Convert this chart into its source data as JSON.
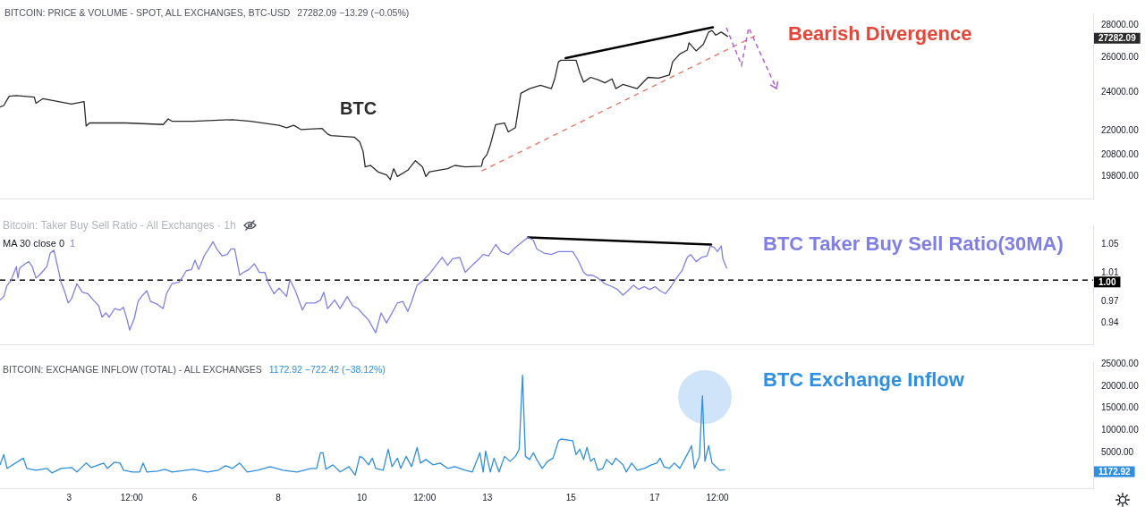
{
  "chart_data": [
    {
      "type": "line",
      "title": "BITCOIN: PRICE & VOLUME - SPOT, ALL EXCHANGES, BTC-USD",
      "subtitle": "27282.09 −13.29 (−0.05%)",
      "annotations": [
        "Bearish Divergence",
        "27282.09"
      ],
      "log": true,
      "xlim": [
        "--03-01T08:24",
        "--03-27T11:31"
      ],
      "ylim": [
        18830,
        28750
      ],
      "yticks": [
        {
          "value": 28000,
          "label": "28000.00"
        },
        {
          "value": 26000,
          "label": "26000.00"
        },
        {
          "value": 24000,
          "label": "24000.00"
        },
        {
          "value": 22000,
          "label": "22000.00"
        },
        {
          "value": 20800,
          "label": "20800.00"
        },
        {
          "value": 19800,
          "label": "19800.00"
        }
      ],
      "tick_labels": "y",
      "series": [
        {
          "name": "BTC",
          "color": "#2b2b2b",
          "x": [
            "--03-01T08:24",
            "--03-01T10:34",
            "--03-01T13:41",
            "--03-01T17:46",
            "--03-02T04:05",
            "--03-02T05:02",
            "--03-02T09:07",
            "--03-03T01:26",
            "--03-03T08:38",
            "--03-03T09:50",
            "--03-03T11:46",
            "--03-04T08:24",
            "--03-05T06:00",
            "--03-05T08:53",
            "--03-05T11:02",
            "--03-05T23:17",
            "--03-06T21:50",
            "--03-07T08:10",
            "--03-08T00:29",
            "--03-08T04:48",
            "--03-08T08:53",
            "--03-08T12:58",
            "--03-09T01:12",
            "--03-09T04:19",
            "--03-09T06:14",
            "--03-09T19:41",
            "--03-09T22:48",
            "--03-10T00:43",
            "--03-10T01:55",
            "--03-10T05:02",
            "--03-10T09:07",
            "--03-10T14:10",
            "--03-10T16:19",
            "--03-10T18:14",
            "--03-10T20:24",
            "--03-11T02:24",
            "--03-11T06:43",
            "--03-11T10:48",
            "--03-11T12:43",
            "--03-11T14:53",
            "--03-12T01:12",
            "--03-12T05:17",
            "--03-12T11:17",
            "--03-12T20:38",
            "--03-12T21:36",
            "--03-12T23:46",
            "--03-13T01:41",
            "--03-13T04:48",
            "--03-13T09:50",
            "--03-13T12:00",
            "--03-13T16:05",
            "--03-13T19:12",
            "--03-14T00:14",
            "--03-14T06:29",
            "--03-14T12:43",
            "--03-14T14:38",
            "--03-14T16:48",
            "--03-14T18:14",
            "--03-15T00:58",
            "--03-15T02:53",
            "--03-15T05:02",
            "--03-15T07:12",
            "--03-15T11:17",
            "--03-15T15:22",
            "--03-15T19:26",
            "--03-15T23:31",
            "--03-16T01:41",
            "--03-16T05:46",
            "--03-16T13:55",
            "--03-16T20:10",
            "--03-17T02:10",
            "--03-17T08:24",
            "--03-17T10:19",
            "--03-17T14:24",
            "--03-17T18:43",
            "--03-17T19:41",
            "--03-17T23:46",
            "--03-18T03:50",
            "--03-18T06:58",
            "--03-18T08:53",
            "--03-18T11:02",
            "--03-18T14:10",
            "--03-18T17:46"
          ],
          "values": [
            23210,
            23290,
            23790,
            23830,
            23740,
            23410,
            23660,
            23370,
            23500,
            22220,
            22380,
            22380,
            22300,
            22590,
            22470,
            22470,
            22550,
            22470,
            22260,
            22140,
            22260,
            22050,
            22100,
            21820,
            21740,
            21670,
            21430,
            20970,
            20240,
            20310,
            20020,
            19870,
            19660,
            20160,
            19800,
            20090,
            20530,
            20240,
            19800,
            20020,
            20160,
            20310,
            20240,
            20270,
            20600,
            20820,
            21280,
            22300,
            22380,
            21930,
            22140,
            23950,
            24210,
            24390,
            24210,
            24750,
            25740,
            25830,
            25830,
            25830,
            25110,
            24570,
            24840,
            24710,
            24530,
            24750,
            24210,
            24440,
            24210,
            24840,
            24800,
            24980,
            25740,
            26200,
            26440,
            26880,
            26390,
            26780,
            27550,
            27650,
            27360,
            27550,
            27282.09
          ]
        },
        {
          "color": "#000000",
          "x": [
            "--03-14T20:53",
            "--03-18T09:22"
          ],
          "values": [
            25960,
            27850
          ]
        },
        {
          "color": "#ee6e5e",
          "line_style": "dashed",
          "x": [
            "--03-12T20:38",
            "--03-19T09:36"
          ],
          "values": [
            20050,
            27310
          ]
        }
      ]
    },
    {
      "type": "line",
      "title": "Bitcoin: Taker Buy Sell Ratio - All Exchanges · 1h",
      "subtitle": "MA 30 close 0",
      "annotations": [
        "1"
      ],
      "xlim": [
        "--03-01T08:24",
        "--03-27T11:31"
      ],
      "ylim": [
        0.91,
        1.077
      ],
      "yticks": [
        1.05,
        1.01,
        0.97,
        0.94
      ],
      "tick_labels": "y",
      "ref_lines": [
        {
          "axis": "y",
          "value": 1,
          "label": "1.00",
          "color": "#000000",
          "line_style": "dashed"
        }
      ],
      "series": [
        {
          "name": "BTC Taker Buy Sell Ratio(30MA)",
          "color": "#8080e4",
          "x": [
            "--03-01T08:24",
            "--03-01T10:34",
            "--03-01T12:29",
            "--03-01T14:38",
            "--03-01T16:48",
            "--03-01T17:46",
            "--03-01T18:43",
            "--03-01T19:41",
            "--03-01T21:50",
            "--03-01T22:48",
            "--03-02T00:58",
            "--03-02T02:53",
            "--03-02T05:02",
            "--03-02T06:58",
            "--03-02T09:07",
            "--03-02T11:17",
            "--03-02T13:12",
            "--03-02T15:22",
            "--03-02T17:17",
            "--03-02T19:26",
            "--03-02T21:22",
            "--03-02T23:31",
            "--03-03T01:26",
            "--03-03T04:34",
            "--03-03T07:41",
            "--03-03T10:48",
            "--03-03T13:55",
            "--03-03T17:02",
            "--03-03T18:58",
            "--03-03T21:07",
            "--03-03T23:02",
            "--03-04T02:10",
            "--03-04T05:17",
            "--03-04T07:12",
            "--03-04T09:22",
            "--03-04T10:48",
            "--03-04T13:26",
            "--03-04T15:36",
            "--03-04T17:31",
            "--03-04T20:38",
            "--03-04T22:48",
            "--03-05T02:53",
            "--03-05T06:00",
            "--03-05T07:55",
            "--03-05T11:02",
            "--03-05T15:07",
            "--03-05T17:17",
            "--03-05T19:12",
            "--03-05T22:19",
            "--03-06T00:14",
            "--03-06T02:24",
            "--03-06T05:31",
            "--03-06T08:38",
            "--03-06T10:34",
            "--03-06T12:43",
            "--03-06T15:50",
            "--03-06T18:43",
            "--03-06T20:53",
            "--03-06T23:02",
            "--03-07T01:55",
            "--03-07T04:05",
            "--03-07T07:12",
            "--03-07T10:19",
            "--03-07T13:12",
            "--03-07T16:19",
            "--03-07T18:29",
            "--03-07T21:36",
            "--03-08T00:29",
            "--03-08T04:48",
            "--03-08T06:43",
            "--03-08T09:50",
            "--03-08T13:55",
            "--03-08T16:05",
            "--03-08T21:07",
            "--03-09T00:14",
            "--03-09T02:10",
            "--03-09T04:19",
            "--03-09T08:24",
            "--03-09T11:31",
            "--03-09T15:36",
            "--03-09T18:43",
            "--03-09T21:50",
            "--03-10T00:43",
            "--03-10T03:50",
            "--03-10T07:55",
            "--03-10T11:02",
            "--03-10T14:10",
            "--03-10T17:17",
            "--03-10T20:24",
            "--03-10T23:31",
            "--03-11T02:24",
            "--03-11T04:34",
            "--03-11T07:41",
            "--03-11T10:48",
            "--03-11T14:53",
            "--03-11T18:00",
            "--03-11T22:05",
            "--03-12T01:12",
            "--03-12T04:05",
            "--03-12T08:10",
            "--03-12T11:17",
            "--03-12T15:22",
            "--03-12T18:29",
            "--03-12T21:36",
            "--03-13T00:43",
            "--03-13T04:48",
            "--03-13T07:55",
            "--03-13T12:00",
            "--03-13T16:05",
            "--03-13T20:10",
            "--03-13T23:17",
            "--03-14T02:24",
            "--03-14T04:19",
            "--03-14T08:24",
            "--03-14T12:43",
            "--03-14T16:48",
            "--03-15T00:58",
            "--03-15T04:05",
            "--03-15T07:12",
            "--03-15T09:07",
            "--03-15T12:14",
            "--03-15T15:22",
            "--03-15T19:26",
            "--03-15T23:31",
            "--03-16T02:38",
            "--03-16T05:46",
            "--03-16T08:38",
            "--03-16T11:46",
            "--03-16T14:53",
            "--03-16T18:00",
            "--03-16T21:07",
            "--03-17T00:14",
            "--03-17T03:07",
            "--03-17T06:14",
            "--03-17T09:22",
            "--03-17T12:29",
            "--03-17T15:36",
            "--03-17T18:43",
            "--03-17T20:38",
            "--03-17T23:46",
            "--03-18T02:53",
            "--03-18T06:00",
            "--03-18T07:55",
            "--03-18T10:05",
            "--03-18T12:00",
            "--03-18T14:10",
            "--03-18T15:07",
            "--03-18T17:17"
          ],
          "values": [
            0.972,
            0.977,
            0.993,
            0.999,
            1.013,
            1.019,
            1.003,
            1.017,
            1.021,
            1.023,
            1.026,
            1.019,
            1.003,
            1.007,
            1.013,
            1.019,
            1.038,
            1.042,
            1.021,
            0.997,
            0.985,
            0.968,
            0.974,
            0.995,
            0.983,
            0.981,
            0.972,
            0.964,
            0.948,
            0.954,
            0.948,
            0.96,
            0.958,
            0.962,
            0.944,
            0.93,
            0.946,
            0.97,
            0.977,
            0.985,
            0.97,
            0.966,
            0.96,
            0.981,
            0.995,
            0.997,
            1.005,
            1.013,
            1.015,
            1.028,
            1.015,
            1.034,
            1.046,
            1.054,
            1.044,
            1.034,
            1.036,
            1.044,
            1.044,
            1.007,
            1.011,
            1.015,
            1.023,
            1.011,
            1.011,
            0.995,
            0.981,
            0.989,
            0.977,
            1.001,
            0.985,
            0.958,
            0.968,
            0.968,
            0.972,
            0.983,
            0.96,
            0.972,
            0.96,
            0.977,
            0.964,
            0.96,
            0.952,
            0.944,
            0.926,
            0.954,
            0.94,
            0.954,
            0.968,
            0.97,
            0.956,
            0.97,
            0.993,
            0.999,
            1.009,
            1.019,
            1.032,
            1.021,
            1.03,
            1.032,
            1.011,
            1.021,
            1.028,
            1.036,
            1.034,
            1.05,
            1.04,
            1.036,
            1.046,
            1.054,
            1.06,
            1.056,
            1.044,
            1.038,
            1.036,
            1.04,
            1.04,
            1.028,
            1.011,
            1.007,
            1.007,
            1.003,
            0.995,
            0.991,
            0.987,
            0.979,
            0.985,
            0.993,
            0.987,
            0.991,
            0.987,
            0.991,
            0.985,
            0.981,
            0.991,
            1.003,
            1.013,
            1.032,
            1.036,
            1.026,
            1.032,
            1.034,
            1.048,
            1.046,
            1.04,
            1.048,
            1.03,
            1.017
          ]
        },
        {
          "color": "#000000",
          "x": [
            "--03-13T23:17",
            "--03-18T08:24"
          ],
          "values": [
            1.06,
            1.05
          ]
        }
      ]
    },
    {
      "type": "line",
      "title": "BITCOIN: EXCHANGE INFLOW (TOTAL) - ALL EXCHANGES",
      "subtitle": "1172.92 −722.42 (−38.12%)",
      "annotations": [
        "1172.92"
      ],
      "xlim": [
        "--03-01T08:24",
        "--03-27T11:31"
      ],
      "ylim": [
        -2960,
        25390
      ],
      "xticks": [
        {
          "value": "--03-03",
          "label": "3"
        },
        {
          "value": "--03-04T12:00",
          "label": "12:00"
        },
        {
          "value": "--03-06",
          "label": "6"
        },
        {
          "value": "--03-08",
          "label": "8"
        },
        {
          "value": "--03-10",
          "label": "10"
        },
        {
          "value": "--03-11T12:00",
          "label": "12:00"
        },
        {
          "value": "--03-13",
          "label": "13"
        },
        {
          "value": "--03-15",
          "label": "15"
        },
        {
          "value": "--03-17",
          "label": "17"
        },
        {
          "value": "--03-18T12:00",
          "label": "12:00"
        }
      ],
      "yticks": [
        {
          "value": 25000,
          "label": "25000.00"
        },
        {
          "value": 20000,
          "label": "20000.00"
        },
        {
          "value": 15000,
          "label": "15000.00"
        },
        {
          "value": 10000,
          "label": "10000.00"
        },
        {
          "value": 5000,
          "label": "5000.00"
        }
      ],
      "series": [
        {
          "name": "BTC Exchange Inflow",
          "color": "#2f8fe0",
          "x": [
            "--03-01T08:24",
            "--03-01T10:34",
            "--03-01T12:29",
            "--03-01T21:50",
            "--03-01T23:46",
            "--03-02T05:02",
            "--03-02T11:17",
            "--03-02T14:10",
            "--03-02T19:26",
            "--03-03T01:26",
            "--03-03T04:34",
            "--03-03T09:50",
            "--03-03T12:43",
            "--03-03T17:02",
            "--03-03T19:55",
            "--03-03T22:05",
            "--03-04T02:10",
            "--03-04T05:17",
            "--03-04T07:12",
            "--03-04T12:29",
            "--03-04T16:34",
            "--03-04T18:29",
            "--03-04T20:38",
            "--03-05T02:53",
            "--03-05T06:58",
            "--03-05T11:02",
            "--03-05T19:12",
            "--03-05T23:17",
            "--03-06T07:26",
            "--03-06T13:41",
            "--03-06T17:46",
            "--03-06T21:50",
            "--03-07T01:55",
            "--03-07T06:14",
            "--03-07T12:14",
            "--03-07T19:26",
            "--03-08T02:38",
            "--03-08T10:48",
            "--03-08T18:58",
            "--03-08T22:05",
            "--03-09T00:14",
            "--03-09T01:41",
            "--03-09T03:22",
            "--03-09T07:26",
            "--03-09T11:31",
            "--03-09T16:34",
            "--03-09T20:10",
            "--03-09T22:48",
            "--03-10T00:43",
            "--03-10T03:50",
            "--03-10T06:00",
            "--03-10T07:55",
            "--03-10T12:14",
            "--03-10T15:07",
            "--03-10T17:17",
            "--03-10T20:24",
            "--03-10T22:19",
            "--03-11T01:26",
            "--03-11T04:34",
            "--03-11T07:41",
            "--03-11T09:36",
            "--03-11T12:43",
            "--03-11T16:48",
            "--03-11T20:53",
            "--03-12T01:12",
            "--03-12T05:17",
            "--03-12T11:17",
            "--03-12T15:22",
            "--03-12T19:41",
            "--03-12T21:36",
            "--03-12T23:02",
            "--03-13T01:41",
            "--03-13T03:50",
            "--03-13T06:43",
            "--03-13T09:50",
            "--03-13T12:58",
            "--03-13T16:05",
            "--03-13T18:14",
            "--03-13T20:10",
            "--03-13T21:50",
            "--03-14T00:14",
            "--03-14T02:24",
            "--03-14T04:19",
            "--03-14T07:26",
            "--03-14T10:34",
            "--03-14T13:41",
            "--03-14T16:48",
            "--03-14T18:14",
            "--03-15T00:58",
            "--03-15T02:53",
            "--03-15T05:02",
            "--03-15T07:12",
            "--03-15T09:07",
            "--03-15T11:17",
            "--03-15T13:12",
            "--03-15T15:22",
            "--03-15T18:14",
            "--03-15T20:24",
            "--03-15T23:31",
            "--03-16T01:41",
            "--03-16T03:36",
            "--03-16T05:46",
            "--03-16T07:41",
            "--03-16T10:48",
            "--03-16T13:55",
            "--03-16T18:00",
            "--03-16T22:05",
            "--03-17T01:12",
            "--03-17T03:07",
            "--03-17T05:17",
            "--03-17T08:24",
            "--03-17T11:17",
            "--03-17T14:24",
            "--03-17T17:31",
            "--03-17T19:41",
            "--03-17T21:07",
            "--03-17T22:48",
            "--03-18T01:41",
            "--03-18T03:22",
            "--03-18T04:48",
            "--03-18T06:58",
            "--03-18T08:53",
            "--03-18T11:02",
            "--03-18T13:12",
            "--03-18T16:05"
          ],
          "values": [
            2300,
            4600,
            1500,
            3800,
            1500,
            1100,
            1500,
            500,
            1500,
            1700,
            700,
            2700,
            1700,
            2300,
            2700,
            1500,
            2900,
            2700,
            1100,
            700,
            700,
            2700,
            700,
            900,
            1300,
            700,
            1100,
            1300,
            700,
            1100,
            2100,
            1500,
            2700,
            700,
            1100,
            1900,
            1100,
            700,
            1500,
            1500,
            5000,
            5000,
            1300,
            2300,
            700,
            1900,
            0,
            4200,
            3800,
            2300,
            3800,
            1500,
            1100,
            5800,
            1900,
            3800,
            1500,
            4200,
            1900,
            6200,
            2700,
            3500,
            2300,
            2700,
            1500,
            1900,
            1100,
            700,
            5000,
            700,
            5400,
            700,
            3800,
            700,
            4200,
            3100,
            4200,
            5800,
            22500,
            4200,
            3500,
            5000,
            3500,
            1500,
            3100,
            3800,
            7700,
            8100,
            7700,
            4600,
            5800,
            3500,
            6200,
            3100,
            3800,
            1100,
            1500,
            3500,
            2300,
            3800,
            3100,
            2300,
            700,
            2700,
            1100,
            1500,
            2300,
            2700,
            3800,
            1900,
            1500,
            2700,
            1500,
            3800,
            5400,
            6600,
            1500,
            4200,
            17800,
            3100,
            6600,
            2700,
            1900,
            1100,
            1172.92
          ]
        }
      ]
    }
  ]
}
